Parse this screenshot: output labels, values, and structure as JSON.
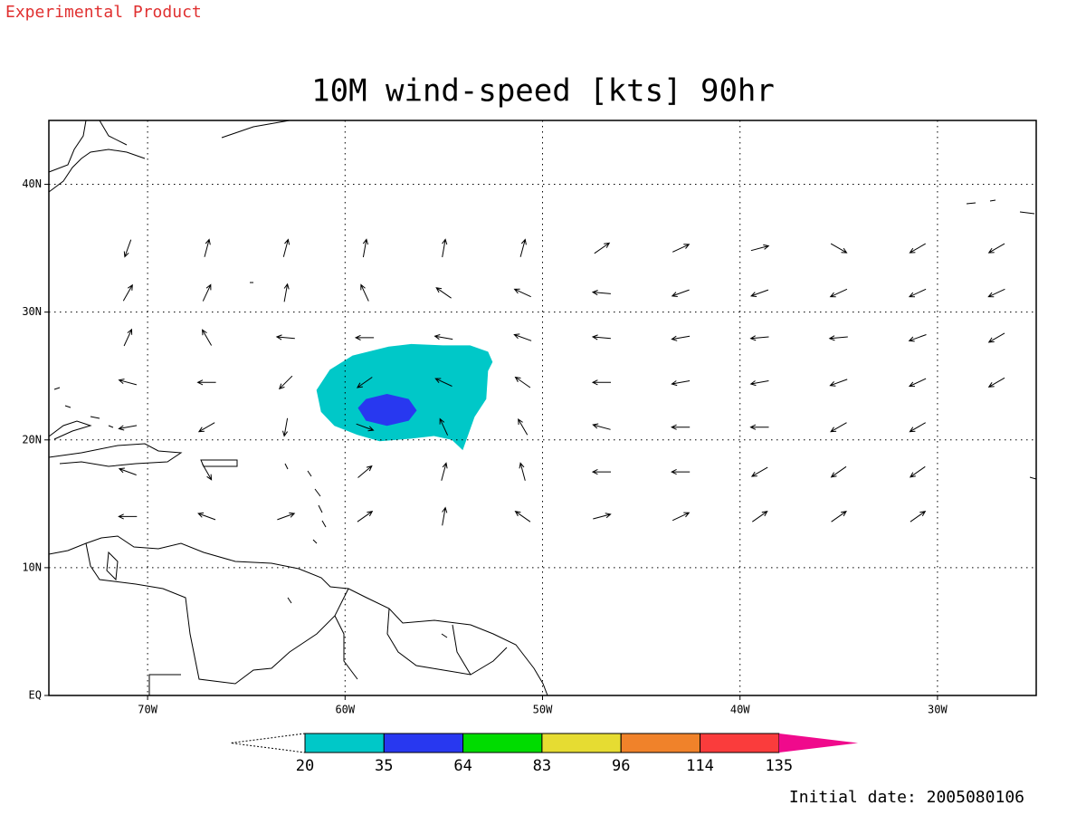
{
  "header": "Experimental Product",
  "chart_data": {
    "type": "map",
    "title": "10M wind-speed [kts] 90hr",
    "xlim": [
      -75,
      -25
    ],
    "ylim": [
      0,
      45
    ],
    "xticks": [
      {
        "value": -70,
        "label": "70W"
      },
      {
        "value": -60,
        "label": "60W"
      },
      {
        "value": -50,
        "label": "50W"
      },
      {
        "value": -40,
        "label": "40W"
      },
      {
        "value": -30,
        "label": "30W"
      }
    ],
    "yticks": [
      {
        "value": 0,
        "label": "EQ"
      },
      {
        "value": 10,
        "label": "10N"
      },
      {
        "value": 20,
        "label": "20N"
      },
      {
        "value": 30,
        "label": "30N"
      },
      {
        "value": 40,
        "label": "40N"
      }
    ],
    "grid": true,
    "colorbar": {
      "levels": [
        20,
        35,
        64,
        83,
        96,
        114,
        135
      ],
      "colors": [
        "#00c8c8",
        "#2838f0",
        "#00dc00",
        "#e6dc32",
        "#f0822a",
        "#fa3c3c",
        "#f00a8c"
      ]
    },
    "shaded_areas": [
      {
        "color": "#00c8c8",
        "lon": [
          -61.45,
          -60.77,
          -59.62,
          -57.79,
          -56.65,
          -55.05,
          -53.67,
          -52.76,
          -52.53,
          -52.76,
          -52.85,
          -53.44,
          -53.67,
          -54.04,
          -54.59,
          -55.5,
          -56.65,
          -58.25,
          -59.39,
          -60.54,
          -61.22
        ],
        "lat": [
          23.9,
          25.5,
          26.6,
          27.3,
          27.5,
          27.4,
          27.4,
          26.9,
          26.1,
          25.4,
          23.2,
          21.8,
          20.8,
          19.2,
          20.0,
          20.3,
          20.1,
          19.9,
          20.4,
          21.1,
          22.2
        ]
      },
      {
        "color": "#2838f0",
        "lon": [
          -59.35,
          -58.94,
          -57.88,
          -56.78,
          -56.37,
          -56.78,
          -57.88,
          -58.94
        ],
        "lat": [
          22.5,
          23.2,
          23.6,
          23.2,
          22.3,
          21.5,
          21.1,
          21.5
        ]
      }
    ],
    "wind_vectors": {
      "lon": [
        -71,
        -67,
        -63,
        -59,
        -55,
        -51,
        -47,
        -43,
        -39,
        -35,
        -31,
        -27
      ],
      "lat": [
        35,
        31.5,
        28,
        24.5,
        21,
        17.5,
        14
      ],
      "direction": [
        [
          250,
          75,
          75,
          80,
          80,
          75,
          35,
          25,
          15,
          -30,
          210,
          210
        ],
        [
          60,
          65,
          80,
          115,
          145,
          155,
          175,
          200,
          200,
          205,
          205,
          205
        ],
        [
          65,
          120,
          175,
          180,
          170,
          160,
          175,
          190,
          185,
          185,
          200,
          210
        ],
        [
          165,
          180,
          225,
          215,
          155,
          145,
          180,
          190,
          190,
          200,
          205,
          210
        ],
        [
          190,
          210,
          260,
          -20,
          115,
          120,
          165,
          180,
          180,
          210,
          210,
          null
        ],
        [
          160,
          -60,
          null,
          40,
          75,
          105,
          180,
          180,
          210,
          215,
          215,
          null
        ],
        [
          180,
          160,
          20,
          35,
          80,
          145,
          15,
          25,
          35,
          35,
          35,
          null
        ]
      ]
    }
  },
  "footer": "Initial date: 2005080106"
}
